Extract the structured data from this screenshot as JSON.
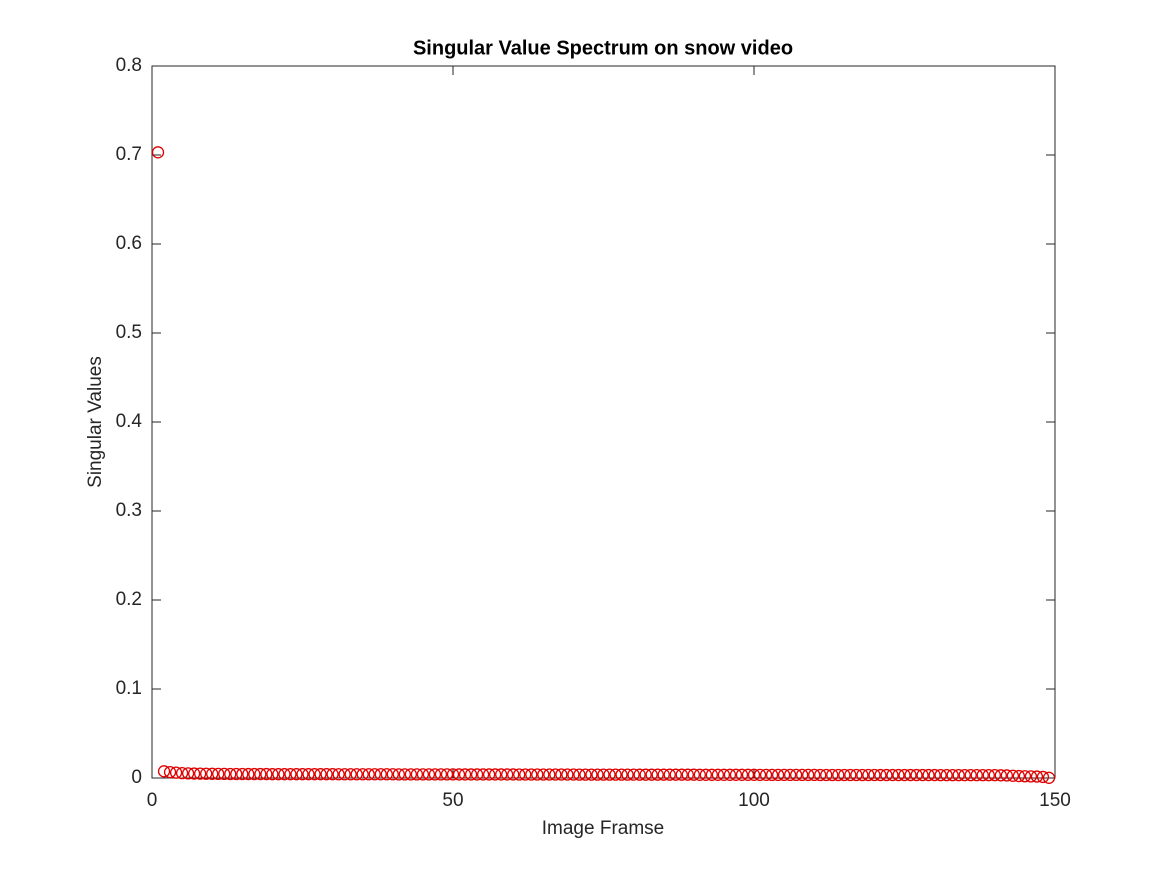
{
  "chart_data": {
    "type": "scatter",
    "title": "Singular Value Spectrum on snow video",
    "x_label": "Image Framse",
    "y_label": "Singular Values",
    "x": [
      1,
      2,
      3,
      4,
      5,
      6,
      7,
      8,
      9,
      10,
      11,
      12,
      13,
      14,
      15,
      16,
      17,
      18,
      19,
      20,
      21,
      22,
      23,
      24,
      25,
      26,
      27,
      28,
      29,
      30,
      31,
      32,
      33,
      34,
      35,
      36,
      37,
      38,
      39,
      40,
      41,
      42,
      43,
      44,
      45,
      46,
      47,
      48,
      49,
      50,
      51,
      52,
      53,
      54,
      55,
      56,
      57,
      58,
      59,
      60,
      61,
      62,
      63,
      64,
      65,
      66,
      67,
      68,
      69,
      70,
      71,
      72,
      73,
      74,
      75,
      76,
      77,
      78,
      79,
      80,
      81,
      82,
      83,
      84,
      85,
      86,
      87,
      88,
      89,
      90,
      91,
      92,
      93,
      94,
      95,
      96,
      97,
      98,
      99,
      100,
      101,
      102,
      103,
      104,
      105,
      106,
      107,
      108,
      109,
      110,
      111,
      112,
      113,
      114,
      115,
      116,
      117,
      118,
      119,
      120,
      121,
      122,
      123,
      124,
      125,
      126,
      127,
      128,
      129,
      130,
      131,
      132,
      133,
      134,
      135,
      136,
      137,
      138,
      139,
      140,
      141,
      142,
      143,
      144,
      145,
      146,
      147,
      148,
      149
    ],
    "values": [
      0.703,
      0.0075,
      0.0066,
      0.006,
      0.0055,
      0.0052,
      0.005,
      0.0049,
      0.0048,
      0.0047,
      0.0046,
      0.0046,
      0.0045,
      0.0045,
      0.0045,
      0.0044,
      0.0044,
      0.0044,
      0.0044,
      0.0043,
      0.0043,
      0.0043,
      0.0043,
      0.0043,
      0.0043,
      0.0043,
      0.0043,
      0.0043,
      0.0043,
      0.0043,
      0.0042,
      0.0042,
      0.0042,
      0.0042,
      0.0042,
      0.0042,
      0.0042,
      0.0042,
      0.0042,
      0.0042,
      0.0041,
      0.0041,
      0.0041,
      0.0041,
      0.0041,
      0.0041,
      0.0041,
      0.0041,
      0.0041,
      0.0041,
      0.004,
      0.004,
      0.004,
      0.004,
      0.004,
      0.004,
      0.004,
      0.004,
      0.004,
      0.004,
      0.0039,
      0.0039,
      0.0039,
      0.0039,
      0.0039,
      0.0039,
      0.0039,
      0.0039,
      0.0039,
      0.0039,
      0.0038,
      0.0038,
      0.0038,
      0.0038,
      0.0038,
      0.0038,
      0.0038,
      0.0038,
      0.0038,
      0.0038,
      0.0037,
      0.0037,
      0.0037,
      0.0037,
      0.0037,
      0.0037,
      0.0037,
      0.0037,
      0.0037,
      0.0037,
      0.0036,
      0.0036,
      0.0036,
      0.0036,
      0.0036,
      0.0036,
      0.0036,
      0.0036,
      0.0036,
      0.0036,
      0.0035,
      0.0035,
      0.0035,
      0.0035,
      0.0035,
      0.0035,
      0.0035,
      0.0035,
      0.0035,
      0.0035,
      0.0034,
      0.0034,
      0.0034,
      0.0034,
      0.0034,
      0.0034,
      0.0034,
      0.0034,
      0.0034,
      0.0034,
      0.0033,
      0.0033,
      0.0033,
      0.0033,
      0.0033,
      0.0033,
      0.0033,
      0.0033,
      0.0033,
      0.0033,
      0.0032,
      0.0032,
      0.0032,
      0.0032,
      0.0032,
      0.0032,
      0.0032,
      0.0032,
      0.0032,
      0.0032,
      0.003,
      0.0029,
      0.0025,
      0.0022,
      0.002,
      0.0018,
      0.0016,
      0.0012,
      0.0002
    ],
    "color": "#e00000",
    "marker": "circle",
    "xlim": [
      0,
      150
    ],
    "xticks": [
      0,
      50,
      100,
      150
    ],
    "ylim": [
      0,
      0.8
    ],
    "yticks": [
      0,
      0.1,
      0.2,
      0.3,
      0.4,
      0.5,
      0.6,
      0.7,
      0.8
    ],
    "grid": false
  }
}
